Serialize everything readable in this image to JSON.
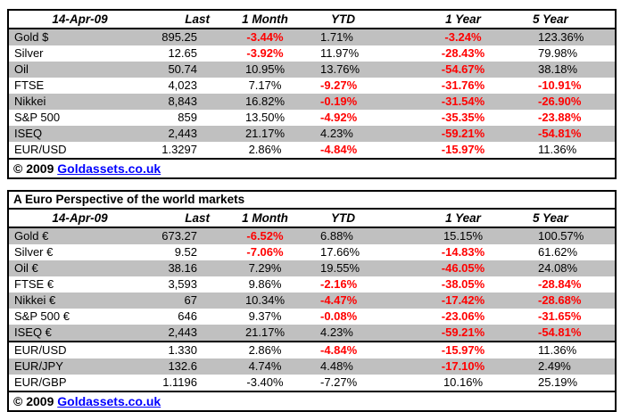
{
  "colors": {
    "stripe_gray": "#C0C0C0",
    "negative_red": "#FF0000",
    "link_blue": "#0000FF",
    "border_black": "#000000",
    "background": "#FFFFFF"
  },
  "chart_data": [
    {
      "type": "table",
      "date_label": "14-Apr-09",
      "columns": [
        "Last",
        "1 Month",
        "YTD",
        "1 Year",
        "5 Year"
      ],
      "rows": [
        {
          "label": "Gold $",
          "cells": [
            {
              "text": "895.25",
              "color": "black"
            },
            {
              "text": "-3.44%",
              "color": "red"
            },
            {
              "text": "1.71%",
              "color": "black"
            },
            {
              "text": "-3.24%",
              "color": "red"
            },
            {
              "text": "123.36%",
              "color": "black"
            }
          ]
        },
        {
          "label": "Silver",
          "cells": [
            {
              "text": "12.65",
              "color": "black"
            },
            {
              "text": "-3.92%",
              "color": "red"
            },
            {
              "text": "11.97%",
              "color": "black"
            },
            {
              "text": "-28.43%",
              "color": "red"
            },
            {
              "text": "79.98%",
              "color": "black"
            }
          ]
        },
        {
          "label": "Oil",
          "cells": [
            {
              "text": "50.74",
              "color": "black"
            },
            {
              "text": "10.95%",
              "color": "black"
            },
            {
              "text": "13.76%",
              "color": "black"
            },
            {
              "text": "-54.67%",
              "color": "red"
            },
            {
              "text": "38.18%",
              "color": "black"
            }
          ]
        },
        {
          "label": "FTSE",
          "cells": [
            {
              "text": "4,023",
              "color": "black"
            },
            {
              "text": "7.17%",
              "color": "black"
            },
            {
              "text": "-9.27%",
              "color": "red"
            },
            {
              "text": "-31.76%",
              "color": "red"
            },
            {
              "text": "-10.91%",
              "color": "red"
            }
          ]
        },
        {
          "label": "Nikkei",
          "cells": [
            {
              "text": "8,843",
              "color": "black"
            },
            {
              "text": "16.82%",
              "color": "black"
            },
            {
              "text": "-0.19%",
              "color": "red"
            },
            {
              "text": "-31.54%",
              "color": "red"
            },
            {
              "text": "-26.90%",
              "color": "red"
            }
          ]
        },
        {
          "label": "S&P 500",
          "cells": [
            {
              "text": "859",
              "color": "black"
            },
            {
              "text": "13.50%",
              "color": "black"
            },
            {
              "text": "-4.92%",
              "color": "red"
            },
            {
              "text": "-35.35%",
              "color": "red"
            },
            {
              "text": "-23.88%",
              "color": "red"
            }
          ]
        },
        {
          "label": "ISEQ",
          "cells": [
            {
              "text": "2,443",
              "color": "black"
            },
            {
              "text": "21.17%",
              "color": "black"
            },
            {
              "text": "4.23%",
              "color": "black"
            },
            {
              "text": "-59.21%",
              "color": "red"
            },
            {
              "text": "-54.81%",
              "color": "red"
            }
          ]
        },
        {
          "label": "EUR/USD",
          "cells": [
            {
              "text": "1.3297",
              "color": "black"
            },
            {
              "text": "2.86%",
              "color": "black"
            },
            {
              "text": "-4.84%",
              "color": "red"
            },
            {
              "text": "-15.97%",
              "color": "red"
            },
            {
              "text": "11.36%",
              "color": "black"
            }
          ]
        }
      ],
      "footer_copyright": "© 2009",
      "footer_link": "Goldassets.co.uk"
    },
    {
      "type": "table",
      "title": "A Euro Perspective of the world markets",
      "date_label": "14-Apr-09",
      "columns": [
        "Last",
        "1 Month",
        "YTD",
        "1 Year",
        "5 Year"
      ],
      "rows": [
        {
          "label": "Gold €",
          "cells": [
            {
              "text": "673.27",
              "color": "black"
            },
            {
              "text": "-6.52%",
              "color": "red"
            },
            {
              "text": "6.88%",
              "color": "black"
            },
            {
              "text": "15.15%",
              "color": "black"
            },
            {
              "text": "100.57%",
              "color": "black"
            }
          ]
        },
        {
          "label": "Silver €",
          "cells": [
            {
              "text": "9.52",
              "color": "black"
            },
            {
              "text": "-7.06%",
              "color": "red"
            },
            {
              "text": "17.66%",
              "color": "black"
            },
            {
              "text": "-14.83%",
              "color": "red"
            },
            {
              "text": "61.62%",
              "color": "black"
            }
          ]
        },
        {
          "label": "Oil €",
          "cells": [
            {
              "text": "38.16",
              "color": "black"
            },
            {
              "text": "7.29%",
              "color": "black"
            },
            {
              "text": "19.55%",
              "color": "black"
            },
            {
              "text": "-46.05%",
              "color": "red"
            },
            {
              "text": "24.08%",
              "color": "black"
            }
          ]
        },
        {
          "label": "FTSE €",
          "cells": [
            {
              "text": "3,593",
              "color": "black"
            },
            {
              "text": "9.86%",
              "color": "black"
            },
            {
              "text": "-2.16%",
              "color": "red"
            },
            {
              "text": "-38.05%",
              "color": "red"
            },
            {
              "text": "-28.84%",
              "color": "red"
            }
          ]
        },
        {
          "label": "Nikkei €",
          "cells": [
            {
              "text": "67",
              "color": "black"
            },
            {
              "text": "10.34%",
              "color": "black"
            },
            {
              "text": "-4.47%",
              "color": "red"
            },
            {
              "text": "-17.42%",
              "color": "red"
            },
            {
              "text": "-28.68%",
              "color": "red"
            }
          ]
        },
        {
          "label": "S&P 500 €",
          "cells": [
            {
              "text": "646",
              "color": "black"
            },
            {
              "text": "9.37%",
              "color": "black"
            },
            {
              "text": "-0.08%",
              "color": "red"
            },
            {
              "text": "-23.06%",
              "color": "red"
            },
            {
              "text": "-31.65%",
              "color": "red"
            }
          ]
        },
        {
          "label": "ISEQ €",
          "cells": [
            {
              "text": "2,443",
              "color": "black"
            },
            {
              "text": "21.17%",
              "color": "black"
            },
            {
              "text": "4.23%",
              "color": "black"
            },
            {
              "text": "-59.21%",
              "color": "red"
            },
            {
              "text": "-54.81%",
              "color": "red"
            }
          ]
        },
        {
          "label": "EUR/USD",
          "cells": [
            {
              "text": "1.330",
              "color": "black"
            },
            {
              "text": "2.86%",
              "color": "black"
            },
            {
              "text": "-4.84%",
              "color": "red"
            },
            {
              "text": "-15.97%",
              "color": "red"
            },
            {
              "text": "11.36%",
              "color": "black"
            }
          ]
        },
        {
          "label": "EUR/JPY",
          "cells": [
            {
              "text": "132.6",
              "color": "black"
            },
            {
              "text": "4.74%",
              "color": "black"
            },
            {
              "text": "4.48%",
              "color": "black"
            },
            {
              "text": "-17.10%",
              "color": "red"
            },
            {
              "text": "2.49%",
              "color": "black"
            }
          ]
        },
        {
          "label": "EUR/GBP",
          "cells": [
            {
              "text": "1.1196",
              "color": "black"
            },
            {
              "text": "-3.40%",
              "color": "black"
            },
            {
              "text": "-7.27%",
              "color": "black"
            },
            {
              "text": "10.16%",
              "color": "black"
            },
            {
              "text": "25.19%",
              "color": "black"
            }
          ]
        }
      ],
      "footer_copyright": "© 2009",
      "footer_link": "Goldassets.co.uk"
    }
  ]
}
